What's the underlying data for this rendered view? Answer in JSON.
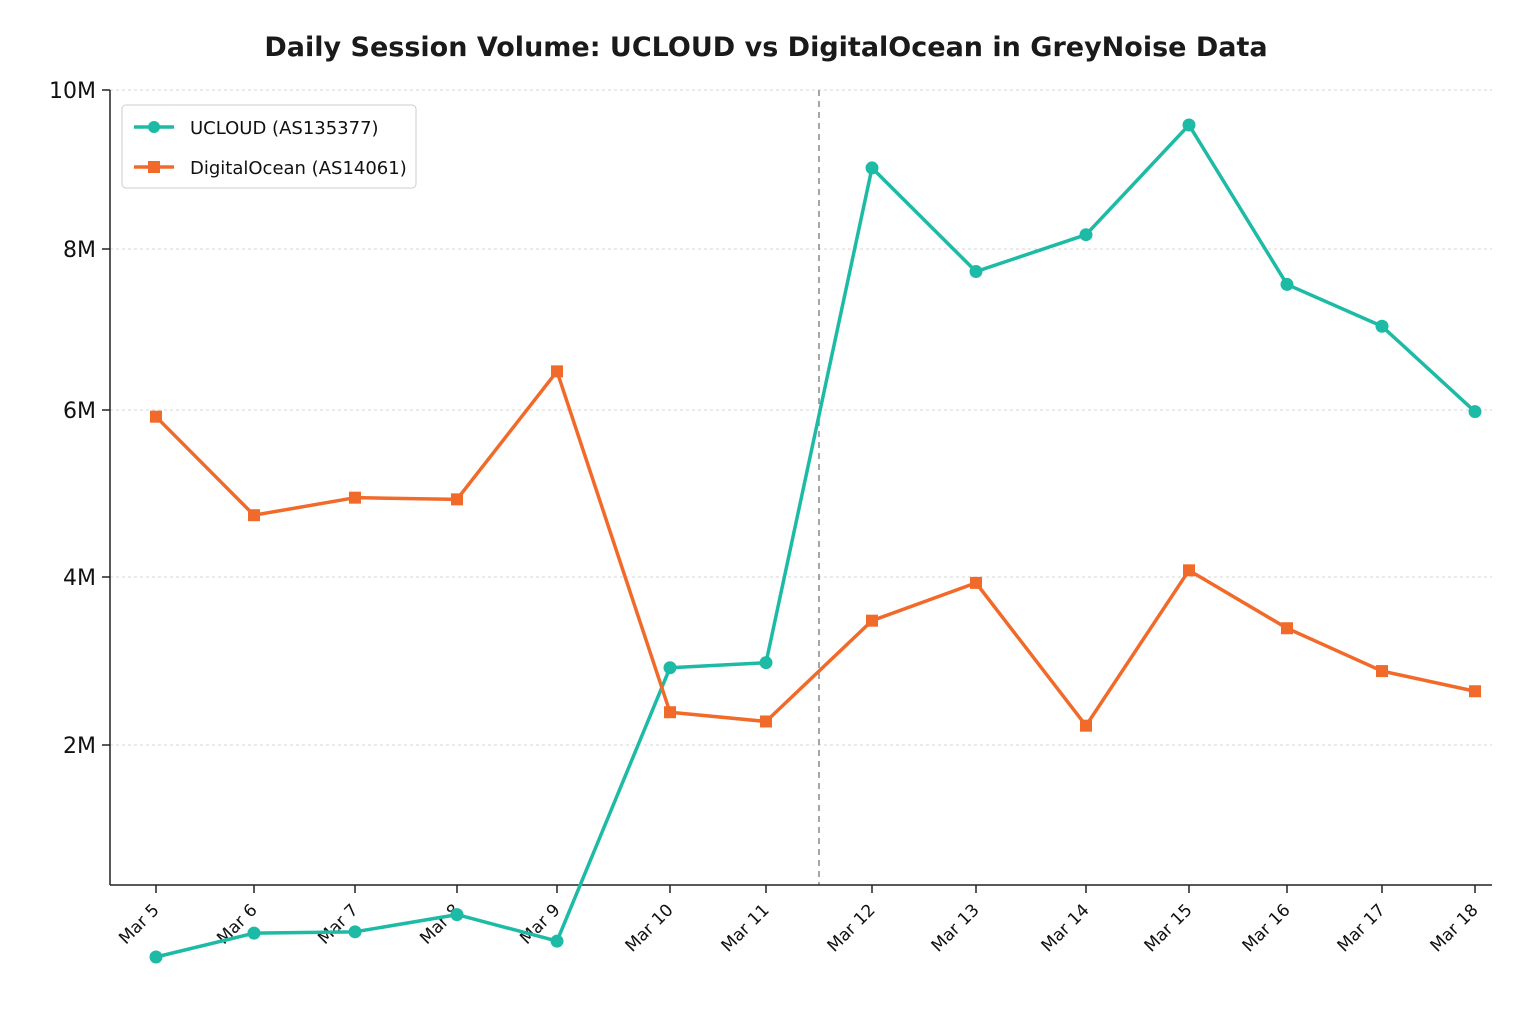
{
  "chart_data": {
    "type": "line",
    "title": "Daily Session Volume: UCLOUD vs DigitalOcean in GreyNoise Data",
    "xlabel": "",
    "ylabel": "",
    "categories": [
      "Mar 5",
      "Mar 6",
      "Mar 7",
      "Mar 8",
      "Mar 9",
      "Mar 10",
      "Mar 11",
      "Mar 12",
      "Mar 13",
      "Mar 14",
      "Mar 15",
      "Mar 16",
      "Mar 17",
      "Mar 18"
    ],
    "ylim": [
      0,
      10000000
    ],
    "yticks": [
      {
        "value": 2000000,
        "label": "2M"
      },
      {
        "value": 4000000,
        "label": "4M"
      },
      {
        "value": 6000000,
        "label": "6M"
      },
      {
        "value": 8000000,
        "label": "8M"
      },
      {
        "value": 10000000,
        "label": "10M"
      }
    ],
    "grid": true,
    "legend_position": "top-left",
    "event_marker_between": [
      "Mar 11",
      "Mar 12"
    ],
    "series": [
      {
        "name": "UCLOUD (AS135377)",
        "color": "#1dbaa6",
        "marker": "circle",
        "values": [
          400000,
          580000,
          590000,
          720000,
          520000,
          2920000,
          2980000,
          9020000,
          7720000,
          8180000,
          9560000,
          7560000,
          7040000,
          5980000
        ]
      },
      {
        "name": "DigitalOcean (AS14061)",
        "color": "#f26a2a",
        "marker": "square",
        "values": [
          5920000,
          4740000,
          4950000,
          4930000,
          6480000,
          2390000,
          2280000,
          3480000,
          3930000,
          2230000,
          4080000,
          3390000,
          2880000,
          2640000
        ]
      }
    ]
  }
}
